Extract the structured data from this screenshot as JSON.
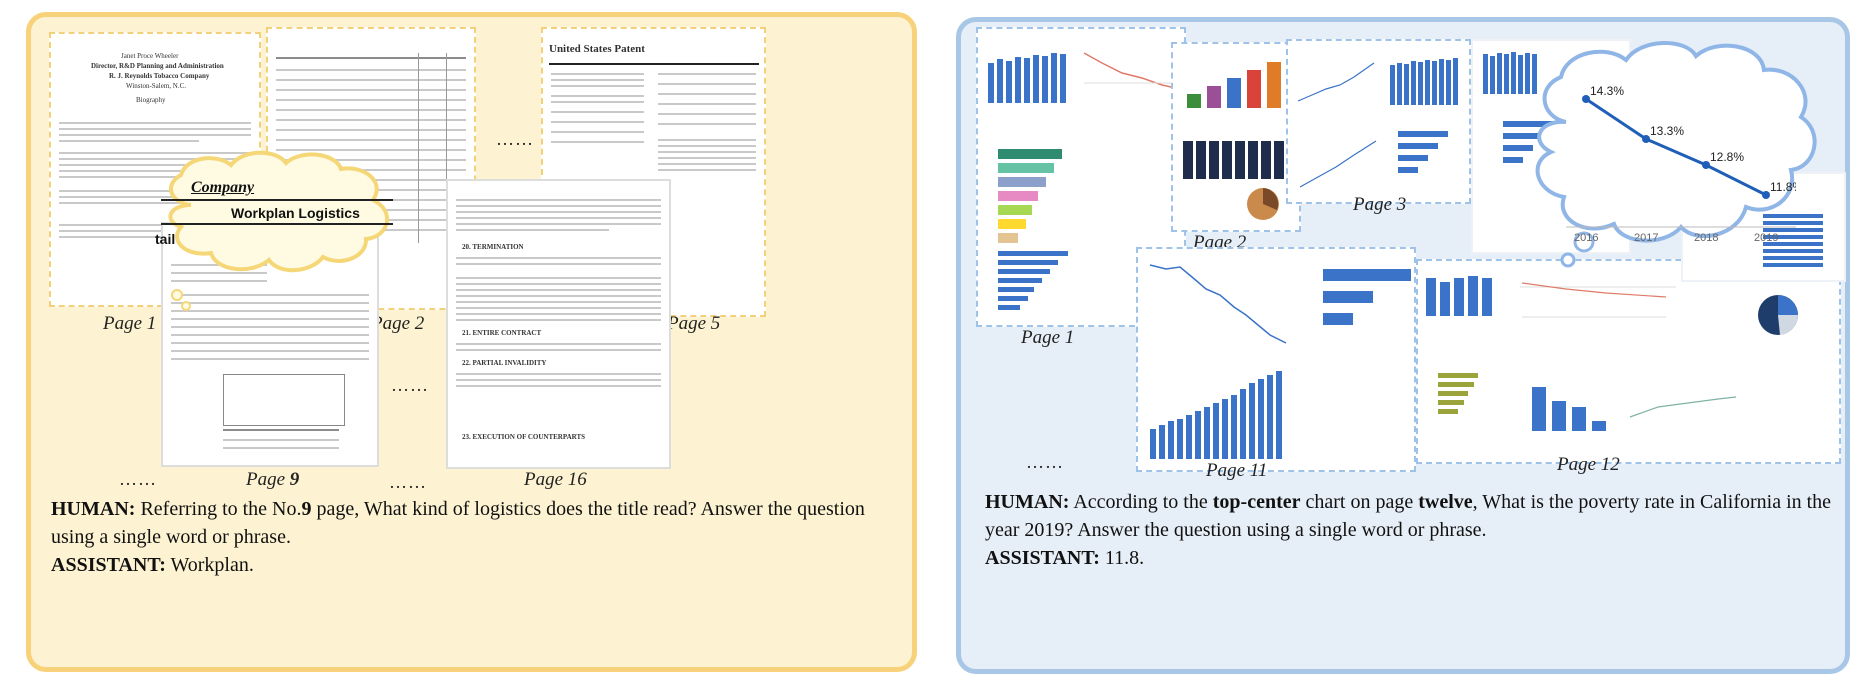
{
  "left_panel": {
    "captions": {
      "page1": "Page 1",
      "page2": "Page 2",
      "page5": "Page 5",
      "page9_prefix": "Page ",
      "page9_num": "9",
      "page16": "Page 16"
    },
    "ellipsis": "……",
    "doc_title_page1_line1": "Janet Proce Wheeler",
    "doc_title_page1_line2": "Director, R&D Planning and Administration",
    "doc_title_page1_line3": "R. J. Reynolds Tobacco Company",
    "doc_title_page1_line4": "Winston-Salem, N.C.",
    "doc_title_page1_line5": "Biography",
    "patent_header": "United States Patent",
    "cloud_word_company": "Company",
    "cloud_word_title": "Workplan Logistics",
    "cloud_word_tail": "tail",
    "page16_sections": [
      "20.   TERMINATION",
      "21.   ENTIRE CONTRACT",
      "22.   PARTIAL INVALIDITY",
      "23.   EXECUTION OF COUNTERPARTS"
    ],
    "qa": {
      "human_label": "HUMAN:",
      "human_text_1": " Referring to the No.",
      "human_bold": "9",
      "human_text_2": " page, What kind of logistics does the title read?  Answer the question using a single word or phrase.",
      "assistant_label": "ASSISTANT:",
      "assistant_text": " Workplan."
    }
  },
  "right_panel": {
    "captions": {
      "page1": "Page 1",
      "page2": "Page 2",
      "page3": "Page 3",
      "page11": "Page 11",
      "page12": "Page 12"
    },
    "ellipsis": "……",
    "cloud_chart": {
      "values": [
        "14.3%",
        "13.3%",
        "12.8%",
        "11.8%"
      ],
      "years": [
        "2016",
        "2017",
        "2018",
        "2019"
      ]
    },
    "qa": {
      "human_label": "HUMAN:",
      "human_text_1": " According to the ",
      "human_bold_1": "top-center",
      "human_text_2": " chart on page ",
      "human_bold_2": "twelve",
      "human_text_3": ", What is the poverty rate in California in the year 2019?  Answer the question using a single word or phrase.",
      "assistant_label": "ASSISTANT:",
      "assistant_text": " 11.8."
    }
  },
  "colors": {
    "left_bg": "#fdf3d2",
    "left_border": "#f7d27a",
    "right_bg": "#e6eef7",
    "right_border": "#a8c6e6",
    "bar_blue": "#3b73c9"
  }
}
